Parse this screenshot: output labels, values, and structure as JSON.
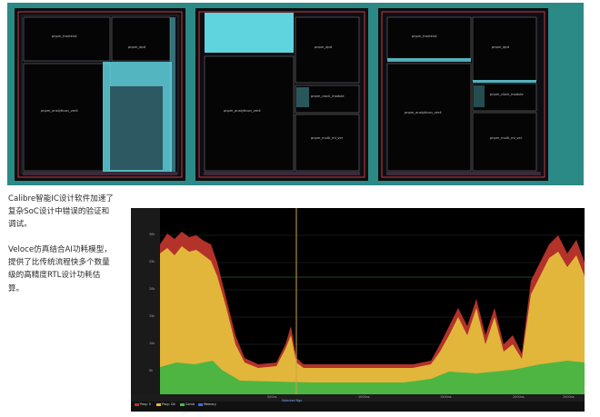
{
  "panels": [
    {
      "id": "layout-left",
      "blocks": {
        "frontend": "pnpm_frontend",
        "dpd": "pnpm_dpd",
        "analytic": "pnpm_analyticon_ver4"
      }
    },
    {
      "id": "layout-middle",
      "blocks": {
        "dpd": "pnpm_dpd",
        "analytic": "pnpm_analyticon_ver4",
        "clock": "pnpm_clock_module",
        "multi": "pnpm_multi_ml_ver"
      }
    },
    {
      "id": "layout-right",
      "blocks": {
        "frontend": "pnpm_frontend",
        "dpd": "pnpm_dpd",
        "analytic": "pnpm_analyticon_ver4",
        "clock": "pnpm_clock_module",
        "multi": "pnpm_multi_ml_ver"
      }
    }
  ],
  "captions": {
    "calibre": "Calibre智能IC设计软件加速了复杂SoC设计中错误的验证和调试。",
    "veloce": "Veloce仿真结合AI功耗模型，提供了比传统流程快多个数量级的高精度RTL设计功耗估算。"
  },
  "waveform": {
    "y_ticks": [
      "30k",
      "25k",
      "20k",
      "15k",
      "10k",
      "5k"
    ],
    "x_ticks": [
      "500ns",
      "1000ns",
      "1500ns",
      "2000ns",
      "2500ns"
    ],
    "cursor_label": "Selected Rgn",
    "legend": [
      "Prog: 0",
      "Prog: Clk",
      "Comb",
      "Memory"
    ],
    "colors": {
      "top": "#b3322a",
      "mid": "#e2b63a",
      "bottom": "#4fb542",
      "cursor": "#c9a24a"
    }
  },
  "colors": {
    "teal": "#2b8a86",
    "cyan": "#5fd3de"
  }
}
